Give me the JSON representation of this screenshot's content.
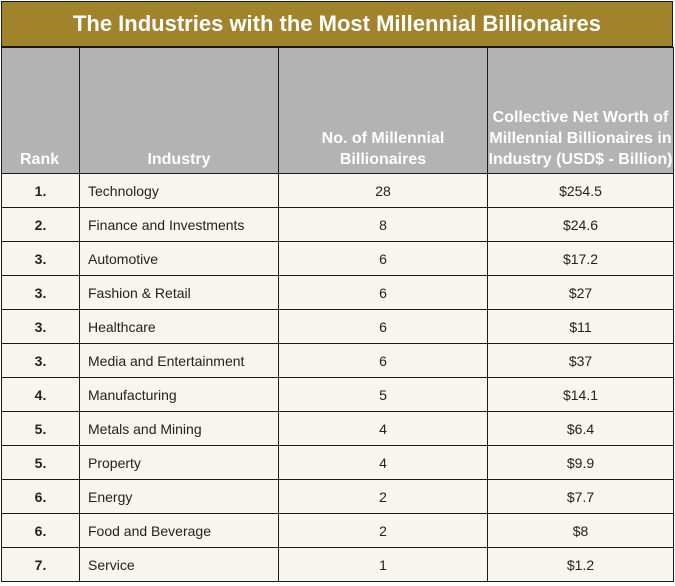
{
  "title": "The Industries with the Most Millennial Billionaires",
  "headers": {
    "rank": "Rank",
    "industry": "Industry",
    "count": "No. of Millennial Billionaires",
    "worth": "Collective Net Worth of Millennial Billionaires in Industry (USD$ - Billion)"
  },
  "rows": [
    {
      "rank": "1.",
      "industry": "Technology",
      "count": "28",
      "worth": "$254.5"
    },
    {
      "rank": "2.",
      "industry": "Finance and Investments",
      "count": "8",
      "worth": "$24.6"
    },
    {
      "rank": "3.",
      "industry": "Automotive",
      "count": "6",
      "worth": "$17.2"
    },
    {
      "rank": "3.",
      "industry": "Fashion & Retail",
      "count": "6",
      "worth": "$27"
    },
    {
      "rank": "3.",
      "industry": "Healthcare",
      "count": "6",
      "worth": "$11"
    },
    {
      "rank": "3.",
      "industry": "Media and Entertainment",
      "count": "6",
      "worth": "$37"
    },
    {
      "rank": "4.",
      "industry": "Manufacturing",
      "count": "5",
      "worth": "$14.1"
    },
    {
      "rank": "5.",
      "industry": "Metals and Mining",
      "count": "4",
      "worth": "$6.4"
    },
    {
      "rank": "5.",
      "industry": "Property",
      "count": "4",
      "worth": "$9.9"
    },
    {
      "rank": "6.",
      "industry": "Energy",
      "count": "2",
      "worth": "$7.7"
    },
    {
      "rank": "6.",
      "industry": "Food and Beverage",
      "count": "2",
      "worth": "$8"
    },
    {
      "rank": "7.",
      "industry": "Service",
      "count": "1",
      "worth": "$1.2"
    }
  ],
  "colors": {
    "title_background": "#a0832b",
    "header_background": "#b3b3b3",
    "row_background": "#f8f4ee",
    "border": "#1a1a1a"
  }
}
